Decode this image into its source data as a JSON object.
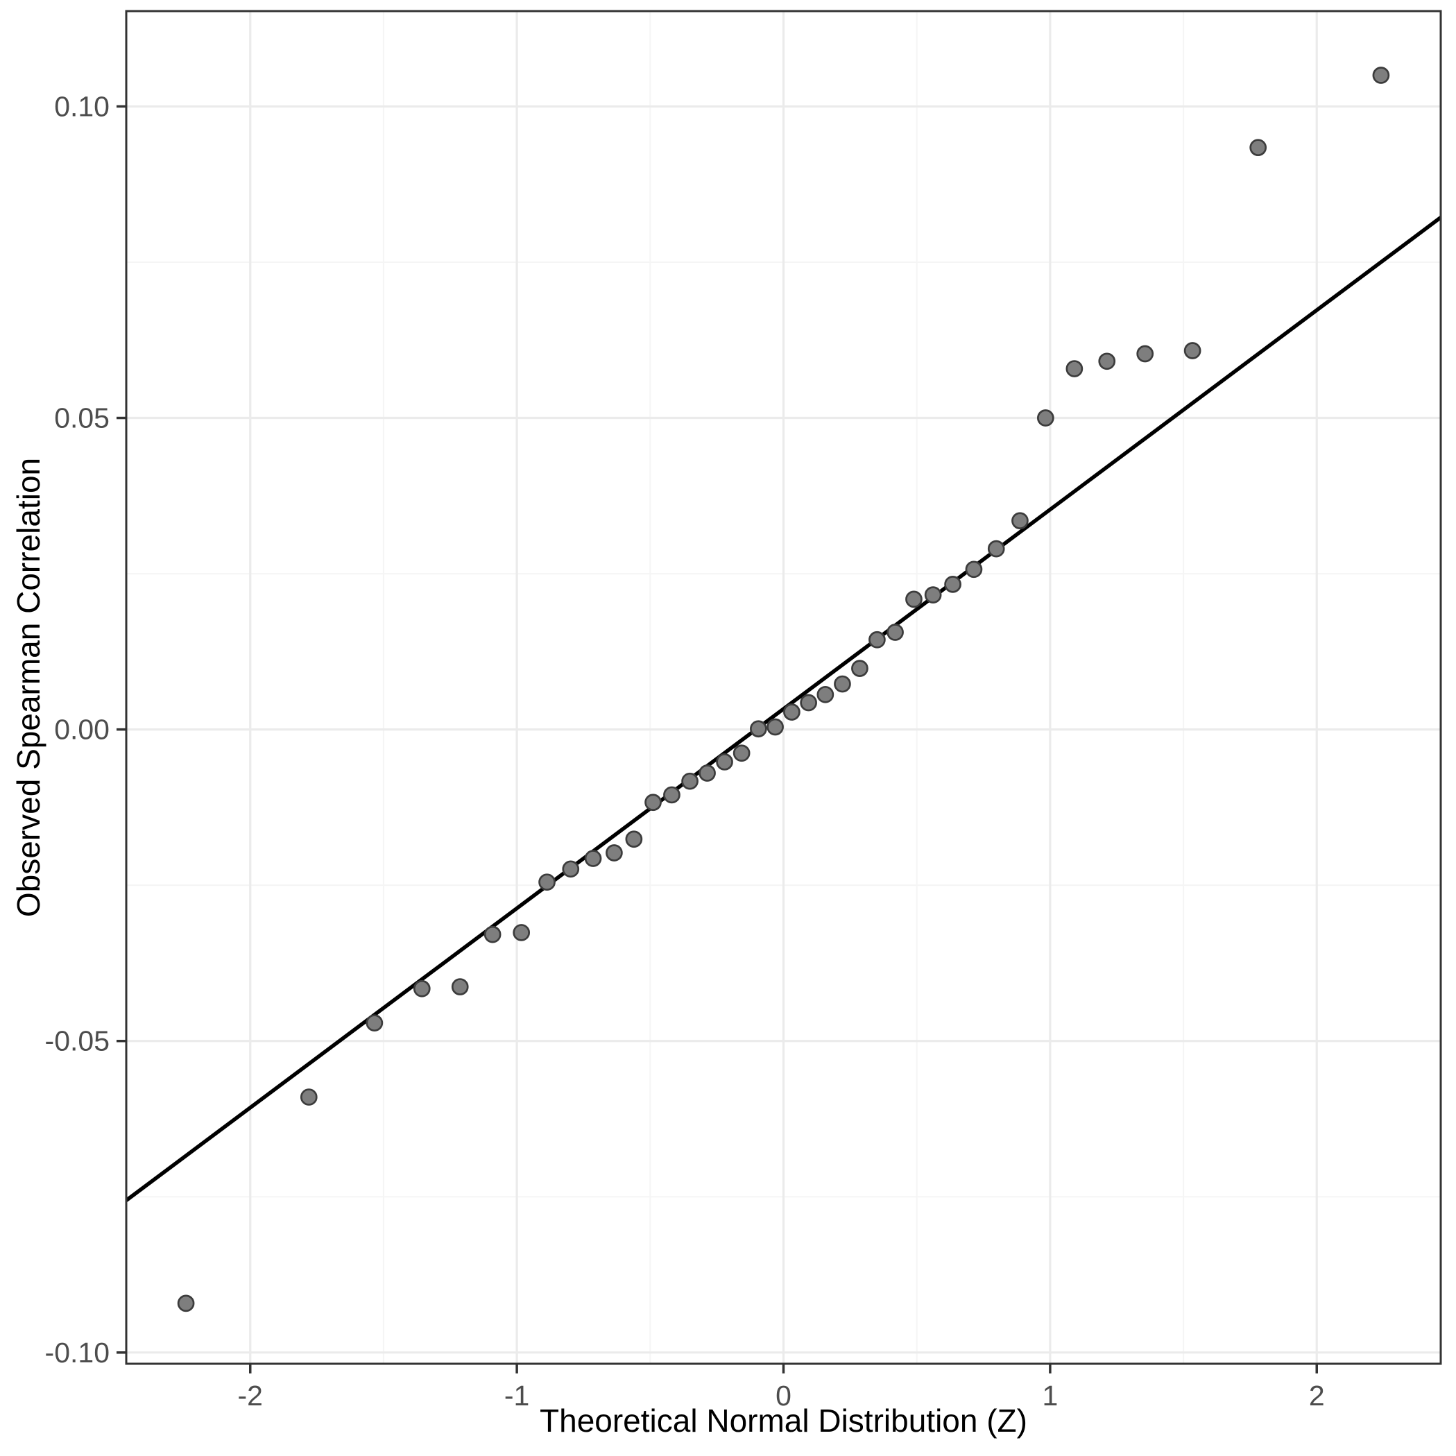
{
  "styles": {
    "background": "#FFFFFF",
    "panel_background": "#FFFFFF",
    "panel_border": "#333333",
    "grid_major": "#EBEBEB",
    "grid_minor": "#F5F5F5",
    "point_fill": "#7E7E7E",
    "point_stroke": "#3C3C3C",
    "reference_line": "#000000",
    "tick_color": "#333333",
    "tick_label_color": "#4D4D4D",
    "axis_title_color": "#000000"
  },
  "chart_data": {
    "type": "scatter",
    "title": "",
    "xlabel": "Theoretical Normal Distribution (Z)",
    "ylabel": "Observed Spearman Correlation",
    "xlim": [
      -2.465,
      2.465
    ],
    "ylim": [
      -0.1018,
      0.1153
    ],
    "grid": true,
    "legend": false,
    "x_tick_values": [
      -2,
      -1,
      0,
      1,
      2
    ],
    "x_tick_labels": [
      "-2",
      "-1",
      "0",
      "1",
      "2"
    ],
    "x_minor_ticks": [
      -1.5,
      -0.5,
      0.5,
      1.5
    ],
    "y_tick_values": [
      0.1,
      0.05,
      0.0,
      -0.05,
      -0.1
    ],
    "y_tick_labels": [
      "0.10",
      "0.05",
      "0.00",
      "-0.05",
      "-0.10"
    ],
    "y_minor_ticks": [
      0.075,
      0.025,
      -0.025,
      -0.075
    ],
    "reference_line": {
      "slope": 0.032,
      "intercept": 0.0033
    },
    "points": [
      [
        -2.241,
        -0.0921
      ],
      [
        -1.78,
        -0.059
      ],
      [
        -1.534,
        -0.0471
      ],
      [
        -1.356,
        -0.0416
      ],
      [
        -1.213,
        -0.0413
      ],
      [
        -1.091,
        -0.0329
      ],
      [
        -0.983,
        -0.0326
      ],
      [
        -0.887,
        -0.0245
      ],
      [
        -0.798,
        -0.0224
      ],
      [
        -0.714,
        -0.0207
      ],
      [
        -0.635,
        -0.0198
      ],
      [
        -0.561,
        -0.0176
      ],
      [
        -0.489,
        -0.0117
      ],
      [
        -0.419,
        -0.0105
      ],
      [
        -0.351,
        -0.0083
      ],
      [
        -0.286,
        -0.007
      ],
      [
        -0.221,
        -0.0052
      ],
      [
        -0.157,
        -0.0038
      ],
      [
        -0.094,
        0.0001
      ],
      [
        -0.031,
        0.0004
      ],
      [
        0.031,
        0.0028
      ],
      [
        0.094,
        0.0043
      ],
      [
        0.157,
        0.0056
      ],
      [
        0.221,
        0.0073
      ],
      [
        0.286,
        0.0098
      ],
      [
        0.351,
        0.0144
      ],
      [
        0.419,
        0.0156
      ],
      [
        0.489,
        0.0209
      ],
      [
        0.561,
        0.0216
      ],
      [
        0.635,
        0.0233
      ],
      [
        0.714,
        0.0257
      ],
      [
        0.798,
        0.029
      ],
      [
        0.887,
        0.0335
      ],
      [
        0.983,
        0.05
      ],
      [
        1.091,
        0.0579
      ],
      [
        1.213,
        0.0591
      ],
      [
        1.356,
        0.0603
      ],
      [
        1.534,
        0.0608
      ],
      [
        1.78,
        0.0934
      ],
      [
        2.241,
        0.105
      ]
    ]
  }
}
